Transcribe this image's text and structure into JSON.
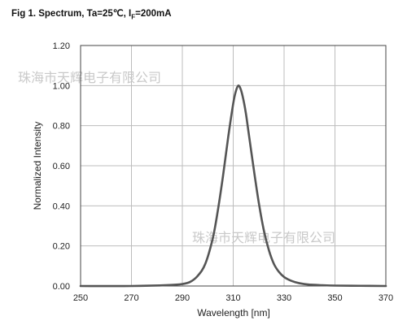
{
  "title": {
    "main": "Fig 1. Spectrum, Ta=25℃, I",
    "subscript": "F",
    "suffix": "=200mA"
  },
  "watermark": "珠海市天辉电子有限公司",
  "chart_data": {
    "type": "line",
    "xlabel": "Wavelength [nm]",
    "ylabel": "Normalized Intensity",
    "xlim": [
      250,
      370
    ],
    "ylim": [
      0,
      1.2
    ],
    "xticks": [
      "250",
      "270",
      "290",
      "310",
      "330",
      "350",
      "370"
    ],
    "yticks": [
      "0.00",
      "0.20",
      "0.40",
      "0.60",
      "0.80",
      "1.00",
      "1.20"
    ],
    "grid": true,
    "line_color": "#555555",
    "series": [
      {
        "x": [
          250,
          270,
          285,
          290,
          293,
          296,
          299,
          302,
          304,
          306,
          308,
          310,
          311,
          312,
          313,
          314,
          315,
          316,
          318,
          320,
          322,
          324,
          326,
          328,
          330,
          333,
          336,
          340,
          345,
          350,
          360,
          370
        ],
        "y": [
          0.0,
          0.0,
          0.005,
          0.01,
          0.02,
          0.05,
          0.11,
          0.24,
          0.38,
          0.55,
          0.74,
          0.91,
          0.97,
          1.0,
          0.98,
          0.93,
          0.86,
          0.77,
          0.59,
          0.42,
          0.28,
          0.18,
          0.11,
          0.07,
          0.045,
          0.025,
          0.014,
          0.007,
          0.004,
          0.002,
          0.001,
          0.0
        ]
      }
    ]
  }
}
